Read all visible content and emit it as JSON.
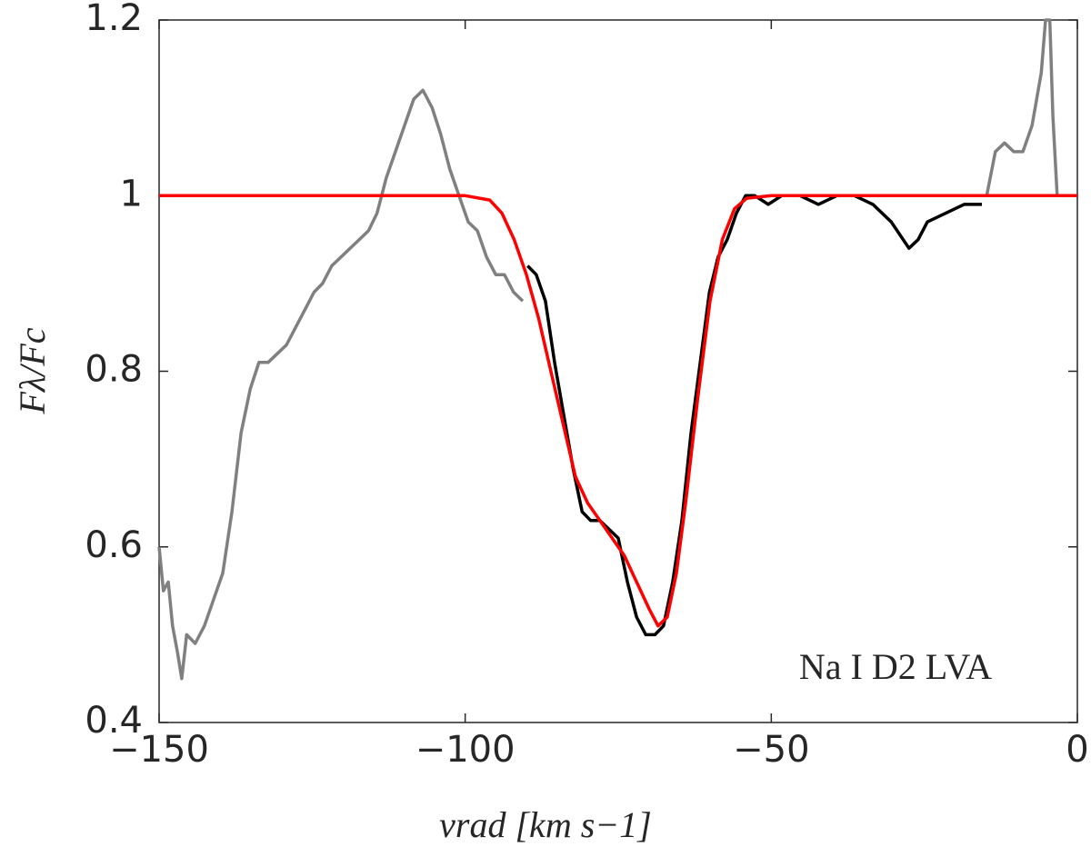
{
  "chart_data": {
    "type": "line",
    "xlabel": "vrad [km s−1]",
    "ylabel": "Fλ/Fc",
    "annotation": "Na I D2 LVA",
    "xlim": [
      -150,
      0
    ],
    "ylim": [
      0.4,
      1.2
    ],
    "xticks": [
      {
        "value": -150,
        "label": "−150"
      },
      {
        "value": -100,
        "label": "−100"
      },
      {
        "value": -50,
        "label": "−50"
      },
      0
    ],
    "yticks": [
      0.4,
      0.6,
      0.8,
      1,
      1.2
    ],
    "series": [
      {
        "color": "#808080",
        "x": [
          -150,
          -149.3,
          -148.5,
          -147.8,
          -147,
          -146.3,
          -145.5,
          -144.1,
          -142.6,
          -141.1,
          -139.6,
          -138.1,
          -136.6,
          -135.1,
          -133.7,
          -132.2,
          -130.7,
          -129.2,
          -127.7,
          -126.2,
          -124.7,
          -123.3,
          -121.8,
          -120.3,
          -118.8,
          -117.3,
          -115.8,
          -114.4,
          -112.9,
          -111.4,
          -109.9,
          -108.4,
          -106.9,
          -105.4,
          -104,
          -102.5,
          -101,
          -99.5,
          -98,
          -96.5,
          -95,
          -93.6,
          -92.1,
          -90.6,
          null,
          -14.8,
          -13.4,
          -11.9,
          -10.4,
          -8.9,
          -7.4,
          -5.9,
          -5.2,
          -4.5,
          -4,
          -3.3
        ],
        "values": [
          0.6,
          0.55,
          0.56,
          0.51,
          0.48,
          0.45,
          0.5,
          0.49,
          0.51,
          0.54,
          0.57,
          0.64,
          0.73,
          0.78,
          0.81,
          0.81,
          0.82,
          0.83,
          0.85,
          0.87,
          0.89,
          0.9,
          0.92,
          0.93,
          0.94,
          0.95,
          0.96,
          0.98,
          1.02,
          1.05,
          1.08,
          1.11,
          1.12,
          1.1,
          1.07,
          1.03,
          1,
          0.97,
          0.96,
          0.93,
          0.91,
          0.91,
          0.89,
          0.88,
          null,
          1,
          1.05,
          1.06,
          1.05,
          1.05,
          1.08,
          1.14,
          1.2,
          1.2,
          1.09,
          1
        ]
      },
      {
        "color": "#000000",
        "x": [
          -89.8,
          -88.4,
          -86.9,
          -85.4,
          -83.9,
          -82.4,
          -80.9,
          -79.5,
          -78,
          -76.5,
          -75,
          -73.5,
          -72,
          -70.5,
          -69,
          -67.6,
          -66.1,
          -64.6,
          -63.1,
          -61.6,
          -60.1,
          -58.7,
          -57.2,
          -55.7,
          -54.2,
          -52.7,
          -50.5,
          -48.3,
          -45.3,
          -42.3,
          -39.3,
          -36.4,
          -33.4,
          -30.4,
          -27.5,
          -26,
          -24.5,
          -21.5,
          -18.5,
          -15.6
        ],
        "values": [
          0.92,
          0.91,
          0.88,
          0.81,
          0.75,
          0.69,
          0.64,
          0.63,
          0.63,
          0.62,
          0.61,
          0.56,
          0.52,
          0.5,
          0.5,
          0.51,
          0.56,
          0.63,
          0.73,
          0.81,
          0.89,
          0.93,
          0.95,
          0.98,
          1,
          1,
          0.99,
          1,
          1,
          0.99,
          1,
          1,
          0.99,
          0.97,
          0.94,
          0.95,
          0.97,
          0.98,
          0.99,
          0.99
        ]
      },
      {
        "color": "#ff0000",
        "x": [
          -150,
          -100,
          -96,
          -94,
          -92,
          -90,
          -88,
          -86,
          -84,
          -82,
          -80,
          -78,
          -76,
          -74,
          -72,
          -70,
          -68.5,
          -67,
          -65.5,
          -64,
          -62,
          -60,
          -58,
          -56,
          -54,
          -50,
          0
        ],
        "values": [
          1,
          1,
          0.995,
          0.98,
          0.95,
          0.91,
          0.86,
          0.8,
          0.74,
          0.68,
          0.65,
          0.63,
          0.61,
          0.59,
          0.56,
          0.53,
          0.51,
          0.52,
          0.57,
          0.65,
          0.77,
          0.88,
          0.95,
          0.985,
          0.997,
          1,
          1
        ]
      }
    ]
  }
}
